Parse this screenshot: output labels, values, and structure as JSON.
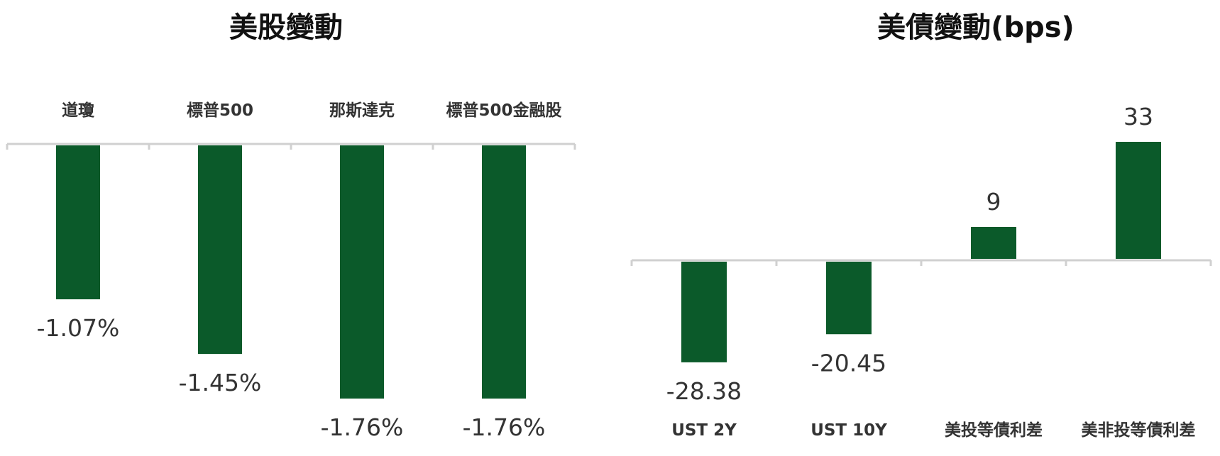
{
  "chart_data": [
    {
      "type": "bar",
      "title": "美股變動",
      "categories": [
        "道瓊",
        "標普500",
        "那斯達克",
        "標普500金融股"
      ],
      "values": [
        -1.07,
        -1.45,
        -1.76,
        -1.76
      ],
      "value_labels": [
        "-1.07%",
        "-1.45%",
        "-1.76%",
        "-1.76%"
      ],
      "unit": "%",
      "ylim": [
        -1.8,
        0
      ],
      "grid": false,
      "legend": "none",
      "color": "#0b5a2a"
    },
    {
      "type": "bar",
      "title": "美債變動(bps)",
      "categories": [
        "UST 2Y",
        "UST 10Y",
        "美投等債利差",
        "美非投等債利差"
      ],
      "values": [
        -28.38,
        -20.45,
        9,
        33
      ],
      "value_labels": [
        "-28.38",
        "-20.45",
        "9",
        "33"
      ],
      "unit": "bps",
      "ylim": [
        -35,
        35
      ],
      "grid": false,
      "legend": "none",
      "color": "#0b5a2a"
    }
  ]
}
